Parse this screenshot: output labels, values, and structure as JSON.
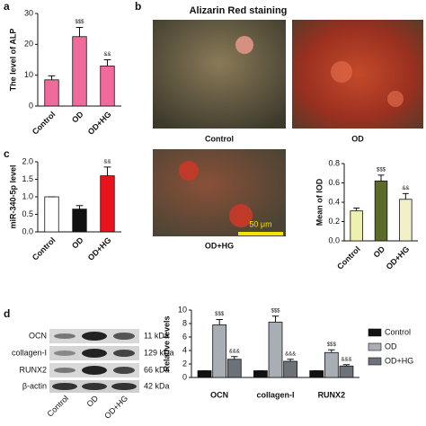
{
  "figure": {
    "panels": [
      "a",
      "b",
      "c",
      "d"
    ],
    "staining": {
      "title": "Alizarin Red staining",
      "labels": [
        "Control",
        "OD",
        "OD+HG"
      ],
      "scale_bar": "50 μm"
    },
    "blot": {
      "proteins": [
        "OCN",
        "collagen-I",
        "RUNX2",
        "β-actin"
      ],
      "sizes": [
        "11 kDa",
        "129 kDa",
        "66 kDa",
        "42 kDa"
      ],
      "lanes": [
        "Control",
        "OD",
        "OD+HG"
      ]
    }
  },
  "chart_data": [
    {
      "type": "bar",
      "y_label": "The level of ALP",
      "categories": [
        "Control",
        "OD",
        "OD+HG"
      ],
      "values": [
        8.5,
        22.5,
        13
      ],
      "errors": [
        1.3,
        3,
        2
      ],
      "annotations": [
        null,
        "$$$",
        "&&"
      ],
      "color": "#f06a9c",
      "ylim": [
        0,
        30
      ],
      "yticks": [
        0,
        10,
        20,
        30
      ]
    },
    {
      "type": "bar",
      "y_label": "Mean of IOD",
      "categories": [
        "Control",
        "OD",
        "OD+HG"
      ],
      "values": [
        0.31,
        0.62,
        0.43
      ],
      "errors": [
        0.03,
        0.06,
        0.06
      ],
      "annotations": [
        null,
        "$$$",
        "&&"
      ],
      "colors": [
        "#eef0b0",
        "#5c6a2a",
        "#f3f0c8"
      ],
      "ylim": [
        0,
        0.8
      ],
      "yticks": [
        {
          "value": 0,
          "label": "0.0"
        },
        0.2,
        0.4,
        0.6,
        0.8
      ]
    },
    {
      "type": "bar",
      "y_label": "miR-340-5p level",
      "categories": [
        "Control",
        "OD",
        "OD+HG"
      ],
      "values": [
        1,
        0.65,
        1.6
      ],
      "errors": [
        0,
        0.1,
        0.25
      ],
      "annotations": [
        null,
        null,
        "&&"
      ],
      "colors": [
        "#ffffff",
        "#111111",
        "#e8141c"
      ],
      "ylim": [
        0,
        2
      ],
      "yticks": [
        {
          "value": 0,
          "label": "0.0"
        },
        0.5,
        {
          "value": 1,
          "label": "1.0"
        },
        1.5,
        {
          "value": 2,
          "label": "2.0"
        }
      ]
    },
    {
      "type": "grouped_bar",
      "y_label": "Relative levels",
      "categories": [
        "OCN",
        "collagen-I",
        "RUNX2"
      ],
      "series": [
        {
          "name": "Control",
          "color": "#111111",
          "values": [
            1,
            1,
            1
          ],
          "errors": [
            0,
            0,
            0
          ],
          "annotations": [
            null,
            null,
            null
          ]
        },
        {
          "name": "OD",
          "color": "#a9aeb4",
          "values": [
            7.8,
            8.2,
            3.7
          ],
          "errors": [
            0.8,
            0.9,
            0.4
          ],
          "annotations": [
            "$$$",
            "$$$",
            "$$$"
          ]
        },
        {
          "name": "OD+HG",
          "color": "#6d7278",
          "values": [
            2.7,
            2.4,
            1.7
          ],
          "errors": [
            0.4,
            0.3,
            0.2
          ],
          "annotations": [
            "&&&",
            "&&&",
            "&&&"
          ]
        }
      ],
      "ylim": [
        0,
        10
      ],
      "yticks": [
        0,
        2,
        4,
        6,
        8,
        10
      ]
    }
  ]
}
